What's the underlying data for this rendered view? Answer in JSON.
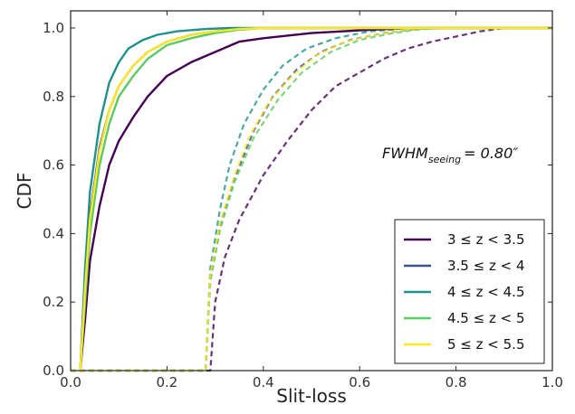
{
  "chart_data": {
    "type": "line",
    "xlabel": "Slit-loss",
    "ylabel": "CDF",
    "xlim": [
      0.0,
      1.0
    ],
    "ylim": [
      0.0,
      1.05
    ],
    "x_ticks": [
      "0.0",
      "0.2",
      "0.4",
      "0.6",
      "0.8",
      "1.0"
    ],
    "y_ticks": [
      "0.0",
      "0.2",
      "0.4",
      "0.6",
      "0.8",
      "1.0"
    ],
    "annotation": "FWHM_seeing = 0.80″",
    "legend_position": "lower-right",
    "grid": false,
    "series": [
      {
        "name": "3 ≤ z < 3.5",
        "color": "#440154",
        "style": "solid",
        "legend": true,
        "points": [
          [
            0.02,
            0.0
          ],
          [
            0.03,
            0.15
          ],
          [
            0.04,
            0.32
          ],
          [
            0.06,
            0.48
          ],
          [
            0.08,
            0.6
          ],
          [
            0.1,
            0.67
          ],
          [
            0.13,
            0.74
          ],
          [
            0.16,
            0.8
          ],
          [
            0.2,
            0.86
          ],
          [
            0.25,
            0.9
          ],
          [
            0.3,
            0.93
          ],
          [
            0.35,
            0.96
          ],
          [
            0.4,
            0.97
          ],
          [
            0.5,
            0.985
          ],
          [
            0.6,
            0.993
          ],
          [
            0.7,
            1.0
          ],
          [
            1.0,
            1.0
          ]
        ]
      },
      {
        "name": "3.5 ≤ z < 4",
        "color": "#3b528b",
        "style": "solid",
        "legend": true,
        "points": [
          [
            0.02,
            0.0
          ],
          [
            0.03,
            0.25
          ],
          [
            0.04,
            0.45
          ],
          [
            0.06,
            0.65
          ],
          [
            0.08,
            0.76
          ],
          [
            0.1,
            0.83
          ],
          [
            0.13,
            0.89
          ],
          [
            0.16,
            0.93
          ],
          [
            0.2,
            0.96
          ],
          [
            0.25,
            0.98
          ],
          [
            0.3,
            0.99
          ],
          [
            0.35,
            0.997
          ],
          [
            0.4,
            1.0
          ],
          [
            1.0,
            1.0
          ]
        ]
      },
      {
        "name": "4 ≤ z < 4.5",
        "color": "#21918c",
        "style": "solid",
        "legend": true,
        "points": [
          [
            0.02,
            0.0
          ],
          [
            0.03,
            0.3
          ],
          [
            0.04,
            0.52
          ],
          [
            0.06,
            0.72
          ],
          [
            0.08,
            0.84
          ],
          [
            0.1,
            0.9
          ],
          [
            0.12,
            0.94
          ],
          [
            0.15,
            0.965
          ],
          [
            0.18,
            0.98
          ],
          [
            0.22,
            0.99
          ],
          [
            0.28,
            0.997
          ],
          [
            0.33,
            1.0
          ],
          [
            1.0,
            1.0
          ]
        ]
      },
      {
        "name": "4.5 ≤ z < 5",
        "color": "#5ec962",
        "style": "solid",
        "legend": true,
        "points": [
          [
            0.02,
            0.0
          ],
          [
            0.03,
            0.2
          ],
          [
            0.04,
            0.4
          ],
          [
            0.06,
            0.6
          ],
          [
            0.08,
            0.72
          ],
          [
            0.1,
            0.8
          ],
          [
            0.13,
            0.86
          ],
          [
            0.16,
            0.91
          ],
          [
            0.2,
            0.95
          ],
          [
            0.25,
            0.97
          ],
          [
            0.3,
            0.985
          ],
          [
            0.35,
            0.995
          ],
          [
            0.4,
            1.0
          ],
          [
            1.0,
            1.0
          ]
        ]
      },
      {
        "name": "5 ≤ z < 5.5",
        "color": "#fde725",
        "style": "solid",
        "legend": true,
        "points": [
          [
            0.02,
            0.0
          ],
          [
            0.03,
            0.24
          ],
          [
            0.04,
            0.44
          ],
          [
            0.06,
            0.64
          ],
          [
            0.08,
            0.76
          ],
          [
            0.1,
            0.83
          ],
          [
            0.13,
            0.89
          ],
          [
            0.16,
            0.93
          ],
          [
            0.2,
            0.96
          ],
          [
            0.25,
            0.98
          ],
          [
            0.3,
            0.99
          ],
          [
            0.35,
            0.997
          ],
          [
            0.4,
            1.0
          ],
          [
            1.0,
            1.0
          ]
        ]
      },
      {
        "name": "",
        "color": "#440154",
        "style": "dashed",
        "legend": false,
        "points": [
          [
            0.0,
            0.0
          ],
          [
            0.29,
            0.0
          ],
          [
            0.3,
            0.2
          ],
          [
            0.32,
            0.33
          ],
          [
            0.35,
            0.44
          ],
          [
            0.4,
            0.57
          ],
          [
            0.45,
            0.67
          ],
          [
            0.5,
            0.76
          ],
          [
            0.55,
            0.83
          ],
          [
            0.6,
            0.87
          ],
          [
            0.65,
            0.91
          ],
          [
            0.7,
            0.94
          ],
          [
            0.75,
            0.96
          ],
          [
            0.8,
            0.975
          ],
          [
            0.85,
            0.99
          ],
          [
            0.9,
            1.0
          ],
          [
            1.0,
            1.0
          ]
        ]
      },
      {
        "name": "",
        "color": "#3b528b",
        "style": "dashed",
        "legend": false,
        "points": [
          [
            0.0,
            0.0
          ],
          [
            0.28,
            0.0
          ],
          [
            0.29,
            0.27
          ],
          [
            0.31,
            0.42
          ],
          [
            0.34,
            0.56
          ],
          [
            0.38,
            0.7
          ],
          [
            0.42,
            0.8
          ],
          [
            0.47,
            0.88
          ],
          [
            0.52,
            0.93
          ],
          [
            0.58,
            0.965
          ],
          [
            0.65,
            0.985
          ],
          [
            0.72,
            0.997
          ],
          [
            0.78,
            1.0
          ],
          [
            1.0,
            1.0
          ]
        ]
      },
      {
        "name": "",
        "color": "#21918c",
        "style": "dashed",
        "legend": false,
        "points": [
          [
            0.0,
            0.0
          ],
          [
            0.28,
            0.0
          ],
          [
            0.29,
            0.3
          ],
          [
            0.31,
            0.47
          ],
          [
            0.33,
            0.6
          ],
          [
            0.36,
            0.72
          ],
          [
            0.4,
            0.82
          ],
          [
            0.44,
            0.89
          ],
          [
            0.49,
            0.94
          ],
          [
            0.55,
            0.97
          ],
          [
            0.62,
            0.99
          ],
          [
            0.68,
            0.997
          ],
          [
            0.72,
            1.0
          ],
          [
            1.0,
            1.0
          ]
        ]
      },
      {
        "name": "",
        "color": "#5ec962",
        "style": "dashed",
        "legend": false,
        "points": [
          [
            0.0,
            0.0
          ],
          [
            0.28,
            0.0
          ],
          [
            0.29,
            0.26
          ],
          [
            0.31,
            0.41
          ],
          [
            0.34,
            0.55
          ],
          [
            0.38,
            0.68
          ],
          [
            0.43,
            0.79
          ],
          [
            0.48,
            0.87
          ],
          [
            0.54,
            0.93
          ],
          [
            0.6,
            0.965
          ],
          [
            0.67,
            0.985
          ],
          [
            0.73,
            0.997
          ],
          [
            0.78,
            1.0
          ],
          [
            1.0,
            1.0
          ]
        ]
      },
      {
        "name": "",
        "color": "#fde725",
        "style": "dashed",
        "legend": false,
        "points": [
          [
            0.0,
            0.0
          ],
          [
            0.28,
            0.0
          ],
          [
            0.29,
            0.28
          ],
          [
            0.31,
            0.43
          ],
          [
            0.34,
            0.57
          ],
          [
            0.37,
            0.68
          ],
          [
            0.41,
            0.78
          ],
          [
            0.46,
            0.86
          ],
          [
            0.51,
            0.92
          ],
          [
            0.57,
            0.96
          ],
          [
            0.63,
            0.98
          ],
          [
            0.7,
            0.995
          ],
          [
            0.75,
            1.0
          ],
          [
            1.0,
            1.0
          ]
        ]
      }
    ]
  }
}
